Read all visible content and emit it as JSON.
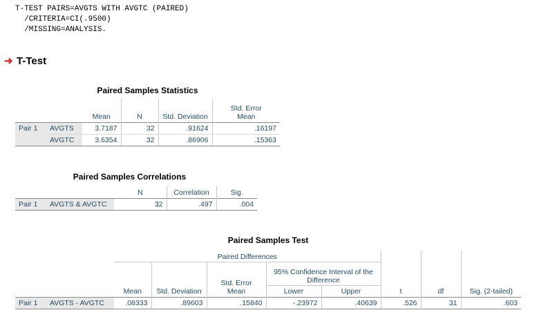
{
  "syntax": {
    "line1": "T-TEST PAIRS=AVGTS WITH AVGTC (PAIRED)",
    "line2": "  /CRITERIA=CI(.9500)",
    "line3": "  /MISSING=ANALYSIS."
  },
  "heading": {
    "arrow": "➜",
    "title": "T-Test"
  },
  "stats": {
    "title": "Paired Samples Statistics",
    "headers": {
      "mean": "Mean",
      "n": "N",
      "std_dev": "Std. Deviation",
      "se1": "Std. Error",
      "se2": "Mean"
    },
    "pair_label": "Pair 1",
    "rows": [
      {
        "var": "AVGTS",
        "mean": "3.7187",
        "n": "32",
        "std": ".91624",
        "se": ".16197"
      },
      {
        "var": "AVGTC",
        "mean": "3.6354",
        "n": "32",
        "std": ".86906",
        "se": ".15363"
      }
    ]
  },
  "corr": {
    "title": "Paired Samples Correlations",
    "headers": {
      "n": "N",
      "correlation": "Correlation",
      "sig": "Sig."
    },
    "pair_label": "Pair 1",
    "row": {
      "var": "AVGTS & AVGTC",
      "n": "32",
      "correlation": ".497",
      "sig": ".004"
    }
  },
  "test": {
    "title": "Paired Samples Test",
    "headers": {
      "paired_diff": "Paired Differences",
      "ci1": "95% Confidence Interval of the",
      "ci2": "Difference",
      "mean": "Mean",
      "std_dev": "Std. Deviation",
      "se1": "Std. Error",
      "se2": "Mean",
      "lower": "Lower",
      "upper": "Upper",
      "t": "t",
      "df": "df",
      "sig": "Sig. (2-tailed)"
    },
    "pair_label": "Pair 1",
    "row": {
      "var": "AVGTS - AVGTC",
      "mean": ".08333",
      "std": ".89603",
      "se": ".15840",
      "lower": "-.23972",
      "upper": ".40639",
      "t": ".526",
      "df": "31",
      "sig": ".603"
    }
  },
  "colors": {
    "table_text": "#264a60",
    "row_label_bg": "#e8e8e8",
    "arrow": "#d62a2a"
  }
}
